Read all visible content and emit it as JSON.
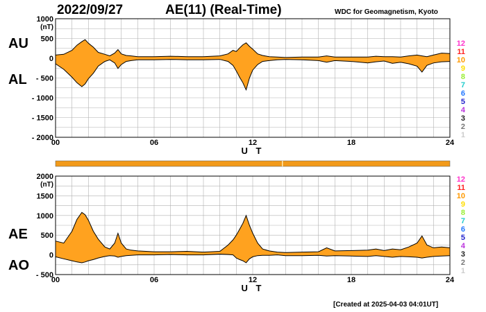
{
  "header": {
    "date": "2022/09/27",
    "title": "AE(11) (Real-Time)",
    "source": "WDC for Geomagnetism, Kyoto",
    "created": "[Created at 2025-04-03 04:01UT]"
  },
  "colors": {
    "fill": "#ffa21f",
    "line": "#000000",
    "grid": "#b0b0b0",
    "status_bar": "#f29a1a"
  },
  "legend_levels": [
    {
      "label": "12",
      "color": "#ff33cc"
    },
    {
      "label": "11",
      "color": "#ff2222"
    },
    {
      "label": "10",
      "color": "#ff9900"
    },
    {
      "label": "9",
      "color": "#ffdd00"
    },
    {
      "label": "8",
      "color": "#99ee33"
    },
    {
      "label": "7",
      "color": "#22cccc"
    },
    {
      "label": "6",
      "color": "#2277ff"
    },
    {
      "label": "5",
      "color": "#2222cc"
    },
    {
      "label": "4",
      "color": "#bb33dd"
    },
    {
      "label": "3",
      "color": "#222222"
    },
    {
      "label": "2",
      "color": "#777777"
    },
    {
      "label": "1",
      "color": "#cccccc"
    }
  ],
  "chart_data": [
    {
      "type": "area",
      "series_labels": [
        "AU",
        "AL"
      ],
      "unit": "(nT)",
      "xlabel": "U T",
      "xticks": [
        "00",
        "06",
        "12",
        "18",
        "24"
      ],
      "xlim": [
        0,
        24
      ],
      "ylim": [
        -2000,
        1000
      ],
      "yticks": [
        "1000",
        "500",
        "0",
        "- 500",
        "- 1000",
        "- 1500",
        "- 2000"
      ],
      "grid": true,
      "x": [
        0,
        0.5,
        1,
        1.3,
        1.6,
        1.8,
        2,
        2.3,
        2.6,
        3,
        3.3,
        3.6,
        3.8,
        4,
        4.3,
        4.6,
        5,
        6,
        7,
        8,
        9,
        10,
        10.5,
        10.8,
        11,
        11.2,
        11.4,
        11.6,
        11.8,
        12,
        12.3,
        12.6,
        13,
        13.5,
        14,
        15,
        16,
        16.5,
        17,
        18,
        19,
        19.5,
        20,
        20.5,
        21,
        21.5,
        22,
        22.3,
        22.6,
        23,
        23.5,
        24
      ],
      "upper": [
        80,
        100,
        200,
        330,
        420,
        470,
        380,
        280,
        150,
        100,
        60,
        130,
        220,
        110,
        70,
        60,
        40,
        40,
        50,
        40,
        40,
        60,
        110,
        200,
        170,
        260,
        340,
        390,
        300,
        230,
        110,
        70,
        40,
        30,
        20,
        30,
        30,
        60,
        30,
        30,
        30,
        50,
        40,
        40,
        30,
        60,
        80,
        60,
        40,
        80,
        130,
        120
      ],
      "lower": [
        -140,
        -280,
        -480,
        -620,
        -720,
        -650,
        -520,
        -380,
        -200,
        -80,
        -40,
        -120,
        -260,
        -160,
        -80,
        -60,
        -40,
        -40,
        -30,
        -40,
        -40,
        -30,
        -80,
        -180,
        -320,
        -480,
        -620,
        -800,
        -500,
        -300,
        -160,
        -80,
        -60,
        -40,
        -30,
        -40,
        -60,
        -100,
        -60,
        -80,
        -120,
        -90,
        -70,
        -130,
        -100,
        -140,
        -200,
        -350,
        -180,
        -120,
        -90,
        -80
      ]
    },
    {
      "type": "area",
      "series_labels": [
        "AE",
        "AO"
      ],
      "unit": "(nT)",
      "xlabel": "U T",
      "xticks": [
        "00",
        "06",
        "12",
        "18",
        "24"
      ],
      "xlim": [
        0,
        24
      ],
      "ylim": [
        -500,
        2000
      ],
      "yticks": [
        "2000",
        "1500",
        "1000",
        "500",
        "0",
        "- 500"
      ],
      "grid": true,
      "x": [
        0,
        0.5,
        1,
        1.3,
        1.6,
        1.8,
        2,
        2.3,
        2.6,
        3,
        3.3,
        3.6,
        3.8,
        4,
        4.3,
        4.6,
        5,
        6,
        7,
        8,
        9,
        10,
        10.5,
        10.8,
        11,
        11.2,
        11.4,
        11.6,
        11.8,
        12,
        12.3,
        12.6,
        13,
        13.5,
        14,
        15,
        16,
        16.5,
        17,
        18,
        19,
        19.5,
        20,
        20.5,
        21,
        21.5,
        22,
        22.3,
        22.6,
        23,
        23.5,
        24
      ],
      "upper": [
        350,
        300,
        600,
        900,
        1080,
        1020,
        880,
        600,
        400,
        200,
        150,
        300,
        550,
        300,
        150,
        120,
        100,
        80,
        80,
        90,
        70,
        90,
        250,
        380,
        500,
        650,
        800,
        1000,
        750,
        550,
        300,
        150,
        100,
        70,
        60,
        70,
        80,
        180,
        100,
        110,
        120,
        150,
        110,
        150,
        130,
        200,
        300,
        480,
        250,
        180,
        200,
        180
      ],
      "lower": [
        -50,
        -100,
        -150,
        -180,
        -200,
        -180,
        -150,
        -120,
        -80,
        -40,
        -20,
        -30,
        -60,
        -40,
        -20,
        -10,
        0,
        0,
        10,
        0,
        0,
        20,
        10,
        0,
        -80,
        -120,
        -150,
        -200,
        -100,
        -50,
        -20,
        -10,
        -10,
        0,
        -20,
        -20,
        -10,
        -30,
        -20,
        -30,
        -40,
        -20,
        -40,
        -60,
        -40,
        -50,
        -60,
        -80,
        -60,
        -40,
        -30,
        -20
      ]
    }
  ]
}
